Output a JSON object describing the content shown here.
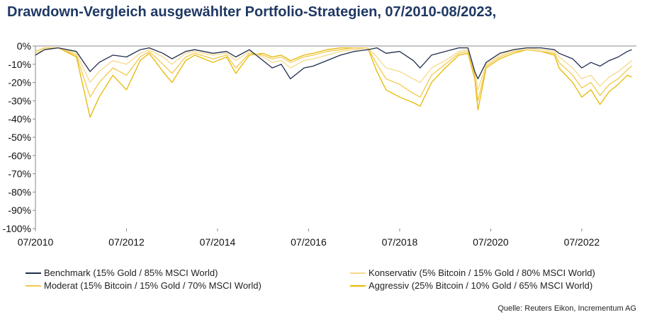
{
  "title": "Drawdown-Vergleich ausgewählter Portfolio-Strategien, 07/2010-08/2023,",
  "source": "Quelle: Reuters Eikon, Incrementum AG",
  "chart_data": {
    "type": "line",
    "title": "Drawdown-Vergleich ausgewählter Portfolio-Strategien, 07/2010-08/2023,",
    "xlabel": "",
    "ylabel": "",
    "xlim": [
      2010.5,
      2023.7
    ],
    "ylim": [
      -100,
      0
    ],
    "x_ticks": [
      "07/2010",
      "07/2012",
      "07/2014",
      "07/2016",
      "07/2018",
      "07/2020",
      "07/2022"
    ],
    "x_tick_values": [
      2010.5,
      2012.5,
      2014.5,
      2016.5,
      2018.5,
      2020.5,
      2022.5
    ],
    "y_ticks": [
      "0%",
      "-10%",
      "-20%",
      "-30%",
      "-40%",
      "-50%",
      "-60%",
      "-70%",
      "-80%",
      "-90%",
      "-100%"
    ],
    "y_tick_values": [
      0,
      -10,
      -20,
      -30,
      -40,
      -50,
      -60,
      -70,
      -80,
      -90,
      -100
    ],
    "grid": false,
    "legend_position": "bottom",
    "series": [
      {
        "name": "Benchmark (15% Gold / 85% MSCI World)",
        "color": "#1f2d4d",
        "x": [
          2010.5,
          2010.7,
          2011.0,
          2011.4,
          2011.7,
          2011.9,
          2012.2,
          2012.5,
          2012.8,
          2013.0,
          2013.3,
          2013.5,
          2013.8,
          2014.0,
          2014.4,
          2014.7,
          2014.9,
          2015.2,
          2015.5,
          2015.7,
          2015.9,
          2016.1,
          2016.4,
          2016.6,
          2016.9,
          2017.2,
          2017.5,
          2017.8,
          2018.0,
          2018.2,
          2018.5,
          2018.8,
          2018.95,
          2019.2,
          2019.5,
          2019.8,
          2020.0,
          2020.15,
          2020.22,
          2020.4,
          2020.7,
          2021.0,
          2021.3,
          2021.6,
          2021.9,
          2022.0,
          2022.3,
          2022.5,
          2022.7,
          2022.9,
          2023.1,
          2023.3,
          2023.5,
          2023.6
        ],
        "values": [
          -5,
          -2,
          -1,
          -3,
          -14,
          -9,
          -5,
          -6,
          -2,
          -1,
          -4,
          -7,
          -3,
          -2,
          -4,
          -3,
          -6,
          -2,
          -8,
          -12,
          -10,
          -18,
          -12,
          -11,
          -8,
          -5,
          -3,
          -2,
          -1,
          -4,
          -3,
          -8,
          -12,
          -5,
          -3,
          -1,
          -1,
          -14,
          -18,
          -9,
          -4,
          -2,
          -1,
          -1,
          -2,
          -4,
          -7,
          -12,
          -9,
          -11,
          -8,
          -6,
          -3,
          -2
        ]
      },
      {
        "name": "Konservativ (5% Bitcoin / 15% Gold / 80% MSCI World)",
        "color": "#f7d98a",
        "x": [
          2010.5,
          2010.7,
          2011.0,
          2011.4,
          2011.7,
          2011.9,
          2012.2,
          2012.5,
          2012.8,
          2013.0,
          2013.3,
          2013.5,
          2013.8,
          2014.0,
          2014.4,
          2014.7,
          2014.9,
          2015.2,
          2015.5,
          2015.7,
          2015.9,
          2016.1,
          2016.4,
          2016.6,
          2016.9,
          2017.2,
          2017.5,
          2017.8,
          2018.0,
          2018.2,
          2018.5,
          2018.8,
          2018.95,
          2019.2,
          2019.5,
          2019.8,
          2020.0,
          2020.15,
          2020.22,
          2020.4,
          2020.7,
          2021.0,
          2021.3,
          2021.6,
          2021.9,
          2022.0,
          2022.3,
          2022.5,
          2022.7,
          2022.9,
          2023.1,
          2023.3,
          2023.5,
          2023.6
        ],
        "values": [
          -4,
          -2,
          -1,
          -4,
          -20,
          -14,
          -8,
          -10,
          -4,
          -2,
          -6,
          -10,
          -4,
          -3,
          -5,
          -4,
          -8,
          -3,
          -6,
          -9,
          -8,
          -12,
          -8,
          -7,
          -5,
          -3,
          -2,
          -1,
          -6,
          -12,
          -14,
          -18,
          -20,
          -12,
          -8,
          -3,
          -2,
          -14,
          -24,
          -10,
          -5,
          -2,
          -1,
          -2,
          -3,
          -6,
          -12,
          -18,
          -16,
          -22,
          -17,
          -14,
          -10,
          -8
        ]
      },
      {
        "name": "Moderat (15% Bitcoin / 15% Gold / 70% MSCI World)",
        "color": "#f2c94c",
        "x": [
          2010.5,
          2010.7,
          2011.0,
          2011.4,
          2011.7,
          2011.9,
          2012.2,
          2012.5,
          2012.8,
          2013.0,
          2013.3,
          2013.5,
          2013.8,
          2014.0,
          2014.4,
          2014.7,
          2014.9,
          2015.2,
          2015.5,
          2015.7,
          2015.9,
          2016.1,
          2016.4,
          2016.6,
          2016.9,
          2017.2,
          2017.5,
          2017.8,
          2018.0,
          2018.2,
          2018.5,
          2018.8,
          2018.95,
          2019.2,
          2019.5,
          2019.8,
          2020.0,
          2020.15,
          2020.22,
          2020.4,
          2020.7,
          2021.0,
          2021.3,
          2021.6,
          2021.9,
          2022.0,
          2022.3,
          2022.5,
          2022.7,
          2022.9,
          2023.1,
          2023.3,
          2023.5,
          2023.6
        ],
        "values": [
          -3,
          -1,
          -1,
          -5,
          -28,
          -20,
          -12,
          -16,
          -6,
          -3,
          -10,
          -15,
          -6,
          -4,
          -7,
          -5,
          -12,
          -4,
          -5,
          -7,
          -6,
          -9,
          -6,
          -5,
          -3,
          -2,
          -1,
          -1,
          -10,
          -18,
          -21,
          -26,
          -28,
          -16,
          -10,
          -4,
          -3,
          -16,
          -30,
          -11,
          -6,
          -3,
          -2,
          -3,
          -4,
          -9,
          -16,
          -23,
          -20,
          -27,
          -21,
          -18,
          -13,
          -11
        ]
      },
      {
        "name": "Aggressiv (25% Bitcoin / 10% Gold / 65% MSCI World)",
        "color": "#e6b800",
        "x": [
          2010.5,
          2010.7,
          2011.0,
          2011.4,
          2011.7,
          2011.9,
          2012.2,
          2012.5,
          2012.8,
          2013.0,
          2013.3,
          2013.5,
          2013.8,
          2014.0,
          2014.4,
          2014.7,
          2014.9,
          2015.2,
          2015.5,
          2015.7,
          2015.9,
          2016.1,
          2016.4,
          2016.6,
          2016.9,
          2017.2,
          2017.5,
          2017.8,
          2018.0,
          2018.2,
          2018.5,
          2018.8,
          2018.95,
          2019.2,
          2019.5,
          2019.8,
          2020.0,
          2020.15,
          2020.22,
          2020.4,
          2020.7,
          2021.0,
          2021.3,
          2021.6,
          2021.9,
          2022.0,
          2022.3,
          2022.5,
          2022.7,
          2022.9,
          2023.1,
          2023.3,
          2023.5,
          2023.6
        ],
        "values": [
          -3,
          -1,
          -1,
          -6,
          -39,
          -28,
          -16,
          -24,
          -8,
          -4,
          -14,
          -20,
          -8,
          -5,
          -9,
          -6,
          -15,
          -5,
          -4,
          -6,
          -5,
          -8,
          -5,
          -4,
          -2,
          -1,
          -1,
          -1,
          -14,
          -24,
          -28,
          -31,
          -33,
          -20,
          -12,
          -5,
          -4,
          -18,
          -35,
          -12,
          -7,
          -4,
          -2,
          -3,
          -5,
          -12,
          -20,
          -28,
          -24,
          -32,
          -25,
          -21,
          -16,
          -17
        ]
      }
    ]
  }
}
